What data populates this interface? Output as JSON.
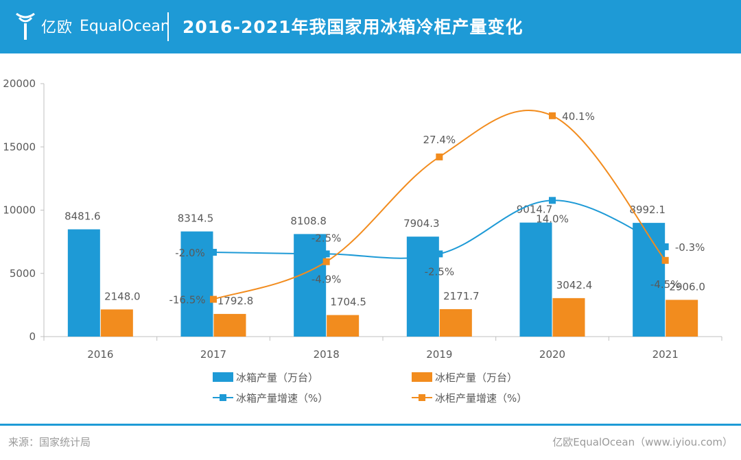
{
  "header": {
    "logo_cn": "亿欧",
    "logo_en": "EqualOcean",
    "title": "2016-2021年我国家用冰箱冷柜产量变化"
  },
  "footer": {
    "source": "来源：国家统计局",
    "credit": "亿欧EqualOcean（www.iyiou.com）"
  },
  "colors": {
    "header_bg": "#1e9ad6",
    "fridge": "#1e9ad6",
    "freezer": "#f28c1e"
  },
  "chart_data": {
    "type": "bar",
    "categories": [
      "2016",
      "2017",
      "2018",
      "2019",
      "2020",
      "2021"
    ],
    "ylim": [
      0,
      20000
    ],
    "yticks": [
      "0",
      "5000",
      "10000",
      "15000",
      "20000"
    ],
    "series": [
      {
        "name": "冰箱产量（万台）",
        "kind": "bar",
        "color": "#1e9ad6",
        "values": [
          8481.6,
          8314.5,
          8108.8,
          7904.3,
          9014.7,
          8992.1
        ],
        "labels": [
          "8481.6",
          "8314.5",
          "8108.8",
          "7904.3",
          "9014.7",
          "8992.1"
        ]
      },
      {
        "name": "冰柜产量（万台）",
        "kind": "bar",
        "color": "#f28c1e",
        "values": [
          2148.0,
          1792.8,
          1704.5,
          2171.7,
          3042.4,
          2906.0
        ],
        "labels": [
          "2148.0",
          "1792.8",
          "1704.5",
          "2171.7",
          "3042.4",
          "2906.0"
        ]
      },
      {
        "name": "冰箱产量增速（%）",
        "kind": "line",
        "color": "#1e9ad6",
        "values": [
          null,
          -2.0,
          -2.5,
          -2.5,
          14.0,
          -0.3
        ],
        "labels": [
          "",
          "-2.0%",
          "-2.5%",
          "-2.5%",
          "14.0%",
          "-0.3%"
        ]
      },
      {
        "name": "冰柜产量增速（%）",
        "kind": "line",
        "color": "#f28c1e",
        "values": [
          null,
          -16.5,
          -4.9,
          27.4,
          40.1,
          -4.5
        ],
        "labels": [
          "",
          "-16.5%",
          "-4.9%",
          "27.4%",
          "40.1%",
          "-4.5%"
        ]
      }
    ],
    "secondary_axis": {
      "shown": false,
      "range": [
        -28,
        50
      ]
    },
    "legend_position": "bottom",
    "grid": false
  }
}
